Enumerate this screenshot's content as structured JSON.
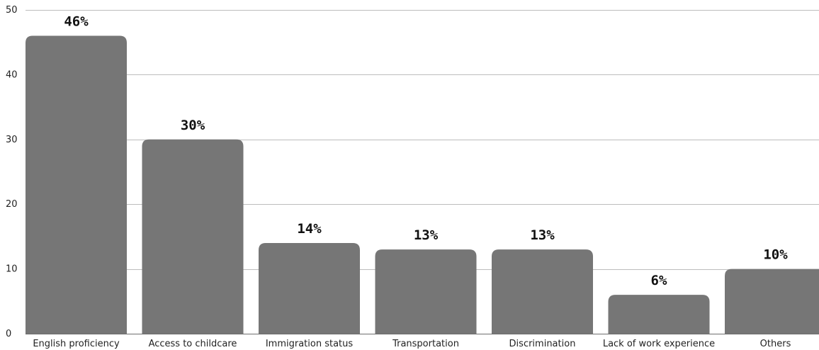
{
  "chart_data": {
    "type": "bar",
    "categories": [
      "English proficiency",
      "Access to childcare",
      "Immigration status",
      "Transportation",
      "Discrimination",
      "Lack of work experience",
      "Others"
    ],
    "values": [
      46,
      30,
      14,
      13,
      13,
      6,
      10
    ],
    "data_labels": [
      "46%",
      "30%",
      "14%",
      "13%",
      "13%",
      "6%",
      "10%"
    ],
    "y_ticks": [
      "0",
      "10",
      "20",
      "30",
      "40",
      "50"
    ],
    "ylim": [
      0,
      50
    ],
    "grid": true,
    "legend": "none",
    "bar_color": "#767676"
  }
}
